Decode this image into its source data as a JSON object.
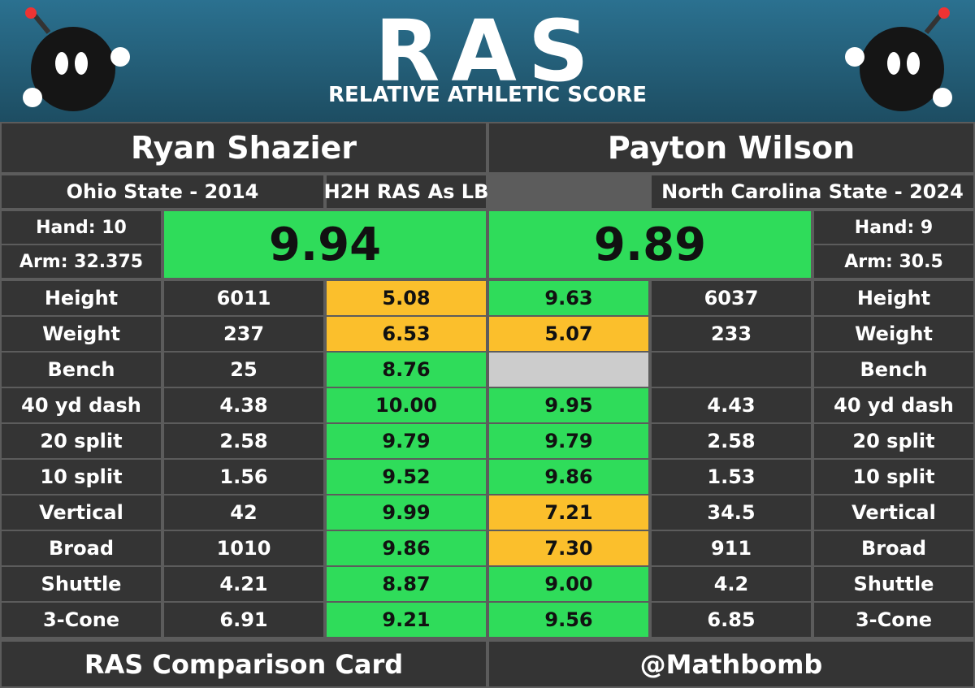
{
  "header": {
    "logo": "RAS",
    "subtitle": "RELATIVE ATHLETIC SCORE"
  },
  "players": [
    {
      "name": "Ryan Shazier",
      "school": "Ohio State - 2014",
      "hand": "Hand: 10",
      "arm": "Arm: 32.375",
      "ras": "9.94",
      "color": "#2fdc5a"
    },
    {
      "name": "Payton Wilson",
      "school": "North Carolina State - 2024",
      "hand": "Hand: 9",
      "arm": "Arm: 30.5",
      "ras": "9.89",
      "color": "#2fdc5a"
    }
  ],
  "comparison_label": "H2H RAS As LB",
  "rows": [
    {
      "metric": "Height",
      "left": {
        "measure": "6011",
        "score": "5.08",
        "color": "#fbbf2c"
      },
      "right": {
        "score": "9.63",
        "color": "#2fdc5a",
        "measure": "6037"
      }
    },
    {
      "metric": "Weight",
      "left": {
        "measure": "237",
        "score": "6.53",
        "color": "#fbbf2c"
      },
      "right": {
        "score": "5.07",
        "color": "#fbbf2c",
        "measure": "233"
      }
    },
    {
      "metric": "Bench",
      "left": {
        "measure": "25",
        "score": "8.76",
        "color": "#2fdc5a"
      },
      "right": {
        "color": "#cccccc"
      }
    },
    {
      "metric": "40 yd dash",
      "left": {
        "measure": "4.38",
        "score": "10.00",
        "color": "#2fdc5a"
      },
      "right": {
        "score": "9.95",
        "color": "#2fdc5a",
        "measure": "4.43"
      }
    },
    {
      "metric": "20 split",
      "left": {
        "measure": "2.58",
        "score": "9.79",
        "color": "#2fdc5a"
      },
      "right": {
        "score": "9.79",
        "color": "#2fdc5a",
        "measure": "2.58"
      }
    },
    {
      "metric": "10 split",
      "left": {
        "measure": "1.56",
        "score": "9.52",
        "color": "#2fdc5a"
      },
      "right": {
        "score": "9.86",
        "color": "#2fdc5a",
        "measure": "1.53"
      }
    },
    {
      "metric": "Vertical",
      "left": {
        "measure": "42",
        "score": "9.99",
        "color": "#2fdc5a"
      },
      "right": {
        "score": "7.21",
        "color": "#fbbf2c",
        "measure": "34.5"
      }
    },
    {
      "metric": "Broad",
      "left": {
        "measure": "1010",
        "score": "9.86",
        "color": "#2fdc5a"
      },
      "right": {
        "score": "7.30",
        "color": "#fbbf2c",
        "measure": "911"
      }
    },
    {
      "metric": "Shuttle",
      "left": {
        "measure": "4.21",
        "score": "8.87",
        "color": "#2fdc5a"
      },
      "right": {
        "score": "9.00",
        "color": "#2fdc5a",
        "measure": "4.2"
      }
    },
    {
      "metric": "3-Cone",
      "left": {
        "measure": "6.91",
        "score": "9.21",
        "color": "#2fdc5a"
      },
      "right": {
        "score": "9.56",
        "color": "#2fdc5a",
        "measure": "6.85"
      }
    }
  ],
  "footer": {
    "left": "RAS Comparison Card",
    "right": "@Mathbomb"
  }
}
